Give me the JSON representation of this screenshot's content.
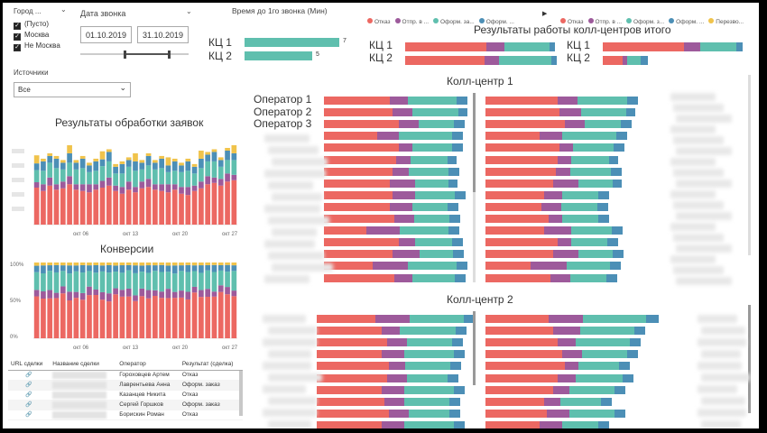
{
  "filters": {
    "city": {
      "label": "Город ...",
      "options": [
        {
          "label": "(Пусто)",
          "checked": true
        },
        {
          "label": "Москва",
          "checked": true
        },
        {
          "label": "Не Москва",
          "checked": true
        }
      ]
    },
    "date": {
      "label": "Дата звонка",
      "from": "01.10.2019",
      "to": "31.10.2019"
    },
    "sources": {
      "label": "Источники",
      "value": "Все"
    }
  },
  "first_call": {
    "title": "Время до 1го звонка (Мин)",
    "bars": [
      {
        "label": "КЦ 1",
        "value": 7
      },
      {
        "label": "КЦ 2",
        "value": 5
      }
    ]
  },
  "legend": {
    "group1": [
      "Отказ",
      "Отпр. в ...",
      "Оформ. за...",
      "Оформ. ..."
    ],
    "group2": [
      "Отказ",
      "Отпр. в ...",
      "Оформ. з...",
      "Оформ. ...",
      "Перезво..."
    ],
    "next_icon": "play-next-icon"
  },
  "totals": {
    "title": "Результаты работы колл-центров итого",
    "left_labels": [
      "КЦ 1",
      "КЦ 2"
    ],
    "right_labels": [
      "КЦ 1",
      "КЦ 2"
    ]
  },
  "left_charts": {
    "processing_title": "Результаты обработки заявок",
    "conversion_title": "Конверсии",
    "x_ticks": [
      "окт 06",
      "окт 13",
      "окт 20",
      "окт 27"
    ],
    "conv_y_ticks": [
      "100%",
      "50%",
      "0%"
    ]
  },
  "cc1": {
    "title": "Колл-центр 1",
    "operators": [
      "Оператор 1",
      "Оператор 2",
      "Оператор 3"
    ]
  },
  "cc2": {
    "title": "Колл-центр 2"
  },
  "deals_table": {
    "columns": [
      "URL сделки",
      "Название сделки",
      "Оператор",
      "Результат (сделка)"
    ],
    "rows": [
      {
        "operator": "Гороховцев Артем",
        "result": "Отказ"
      },
      {
        "operator": "Лаврентьева Анна",
        "result": "Оформ. заказ"
      },
      {
        "operator": "Казанцев Никита",
        "result": "Отказ"
      },
      {
        "operator": "Сергей Горшков",
        "result": "Оформ. заказ"
      },
      {
        "operator": "Борискин Роман",
        "result": "Отказ"
      }
    ],
    "link_icon": "link-icon"
  },
  "colors": {
    "refusal": "#ec6862",
    "sent": "#9d5a9b",
    "order1": "#5fbfae",
    "order2": "#4c8fb6",
    "callback": "#f0c34b"
  }
}
